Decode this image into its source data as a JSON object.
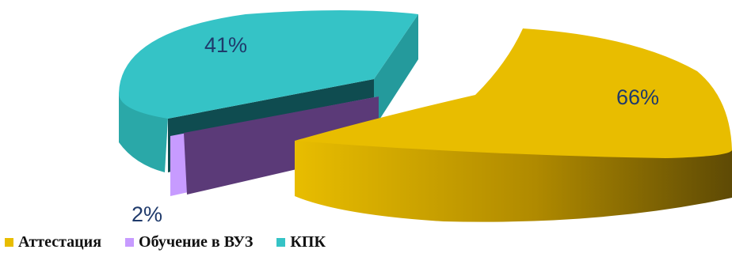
{
  "chart_data": {
    "type": "pie",
    "title": "",
    "slices": [
      {
        "name": "Аттестация",
        "value": 66,
        "label": "66%",
        "color": "#e8bd00",
        "exploded": true
      },
      {
        "name": "Обучение в ВУЗ",
        "value": 2,
        "label": "2%",
        "color": "#c79bff"
      },
      {
        "name": "КПК",
        "value": 41,
        "label": "41%",
        "color": "#35c3c6"
      }
    ],
    "legend_position": "bottom-left",
    "style": "3d-exploded"
  }
}
